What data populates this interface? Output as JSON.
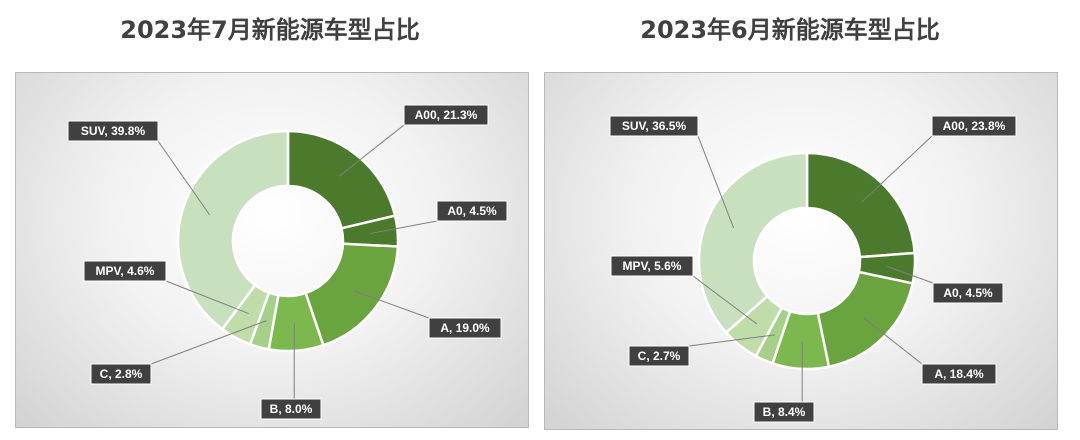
{
  "chart_data": [
    {
      "type": "pie",
      "title": "2023年7月新能源车型占比",
      "slices": [
        {
          "label": "A00, 21.3%",
          "name": "A00",
          "value": 21.3,
          "color": "#4c7a2c"
        },
        {
          "label": "A0, 4.5%",
          "name": "A0",
          "value": 4.5,
          "color": "#4c7a2c"
        },
        {
          "label": "A, 19.0%",
          "name": "A",
          "value": 19.0,
          "color": "#6aa43f"
        },
        {
          "label": "B, 8.0%",
          "name": "B",
          "value": 8.0,
          "color": "#7db84e"
        },
        {
          "label": "C, 2.8%",
          "name": "C",
          "value": 2.8,
          "color": "#a6cf8a"
        },
        {
          "label": "MPV, 4.6%",
          "name": "MPV",
          "value": 4.6,
          "color": "#bfdca9"
        },
        {
          "label": "SUV, 39.8%",
          "name": "SUV",
          "value": 39.8,
          "color": "#c9e0bf"
        }
      ]
    },
    {
      "type": "pie",
      "title": "2023年6月新能源车型占比",
      "slices": [
        {
          "label": "A00, 23.8%",
          "name": "A00",
          "value": 23.8,
          "color": "#4c7a2c"
        },
        {
          "label": "A0, 4.5%",
          "name": "A0",
          "value": 4.5,
          "color": "#4c7a2c"
        },
        {
          "label": "A, 18.4%",
          "name": "A",
          "value": 18.4,
          "color": "#6aa43f"
        },
        {
          "label": "B, 8.4%",
          "name": "B",
          "value": 8.4,
          "color": "#7db84e"
        },
        {
          "label": "C, 2.7%",
          "name": "C",
          "value": 2.7,
          "color": "#a6cf8a"
        },
        {
          "label": "MPV, 5.6%",
          "name": "MPV",
          "value": 5.6,
          "color": "#bfdca9"
        },
        {
          "label": "SUV, 36.5%",
          "name": "SUV",
          "value": 36.5,
          "color": "#c9e0bf"
        }
      ]
    }
  ]
}
